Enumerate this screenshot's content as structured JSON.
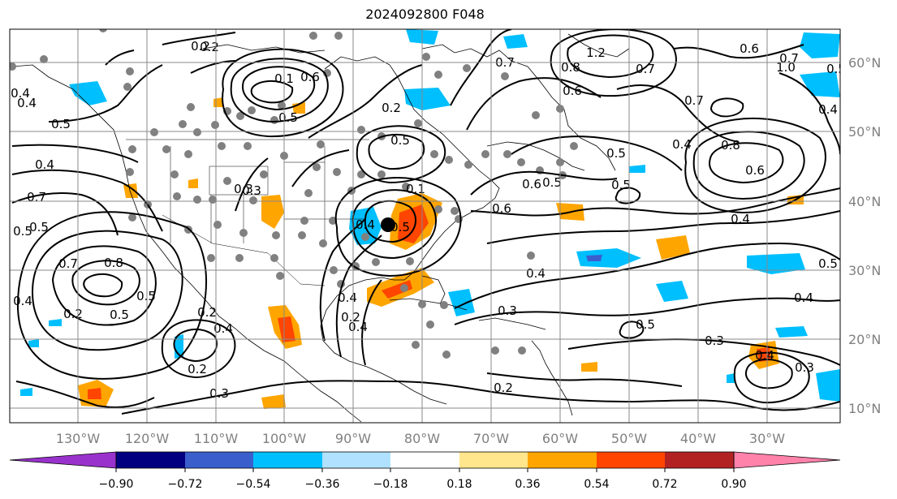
{
  "title": "2024092800 F048",
  "map": {
    "lon_labels": [
      "130°W",
      "120°W",
      "110°W",
      "100°W",
      "90°W",
      "80°W",
      "70°W",
      "60°W",
      "50°W",
      "40°W",
      "30°W"
    ],
    "lat_labels": [
      "60°N",
      "50°N",
      "40°N",
      "30°N",
      "20°N",
      "10°N"
    ],
    "contour_labels": [
      "0.2",
      "0.1",
      "0.6",
      "0.4",
      "0.4",
      "0.5",
      "0.2",
      "0.5",
      "0.3",
      "0.5",
      "0.2",
      "0.1",
      "0.5",
      "0.4",
      "0.7",
      "1.2",
      "0.8",
      "0.6",
      "0.7",
      "0.7",
      "0.6",
      "0.5",
      "0.8",
      "0.6",
      "1.0",
      "0.7",
      "0.5",
      "0.6",
      "0.5",
      "0.4",
      "0.7",
      "0.5",
      "0.3",
      "0.4",
      "0.5",
      "0.6",
      "0.4",
      "0.4",
      "0.3",
      "0.7",
      "0.8",
      "0.5",
      "0.2",
      "0.4",
      "0.5",
      "0.3",
      "0.4",
      "0.5",
      "0.2",
      "0.2",
      "0.3",
      "0.4",
      "0.3",
      "0.4",
      "0.4",
      "0.2",
      "0.2",
      "0.5",
      "0.4",
      "0.5",
      "0.4"
    ]
  },
  "colorbar": {
    "labels": [
      "−0.90",
      "−0.72",
      "−0.54",
      "−0.36",
      "−0.18",
      "0.18",
      "0.36",
      "0.54",
      "0.72",
      "0.90"
    ],
    "colors": [
      "#9932cc",
      "#000080",
      "#3a5fcd",
      "#00bfff",
      "#b0e2ff",
      "#ffffff",
      "#ffe68c",
      "#ffa500",
      "#ff4500",
      "#b22222",
      "#ff82ab"
    ]
  },
  "colors": {
    "contour": "#000000",
    "grid": "#888888",
    "station": "#808080",
    "positive_moderate": "#ffa500",
    "positive_strong": "#ff4500",
    "negative_moderate": "#00bfff",
    "negative_strong": "#3a5fcd"
  }
}
